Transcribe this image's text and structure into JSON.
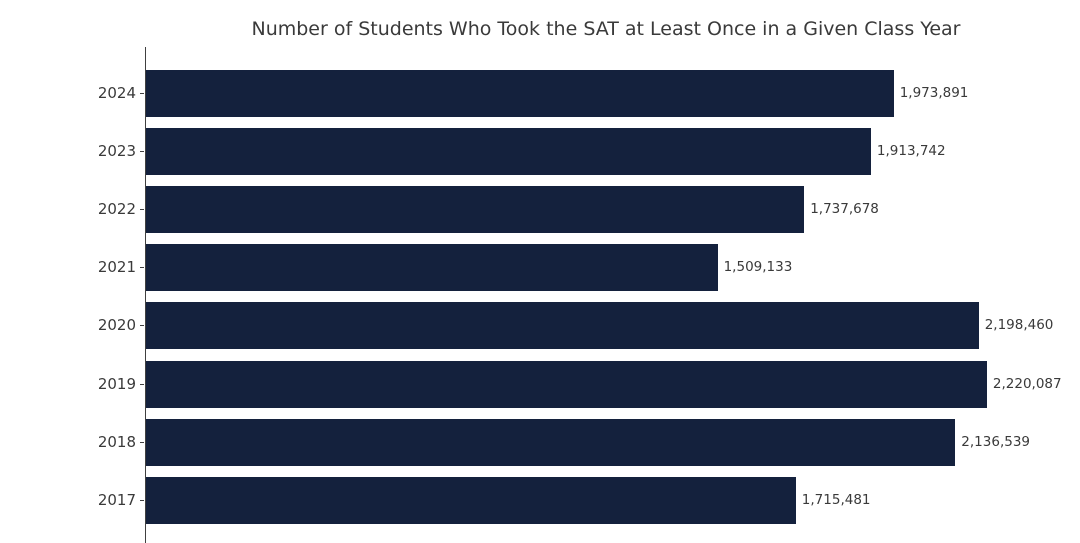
{
  "chart_data": {
    "type": "bar",
    "orientation": "horizontal",
    "title": "Number of Students Who Took the SAT at Least Once in a Given Class Year",
    "categories": [
      "2024",
      "2023",
      "2022",
      "2021",
      "2020",
      "2019",
      "2018",
      "2017"
    ],
    "values": [
      1973891,
      1913742,
      1737678,
      1509133,
      2198460,
      2220087,
      2136539,
      1715481
    ],
    "values_formatted": [
      "1,973,891",
      "1,913,742",
      "1,737,678",
      "1,509,133",
      "2,198,460",
      "2,220,087",
      "2,136,539",
      "1,715,481"
    ],
    "xlabel": "",
    "ylabel": "",
    "xlim": [
      0,
      2468500
    ],
    "grid": false,
    "legend": false,
    "colors": {
      "bar": "#14213d",
      "label_text": "#3a3a3a",
      "title_text": "#3a3a3a",
      "spine": "#404040",
      "background": "#ffffff"
    }
  }
}
